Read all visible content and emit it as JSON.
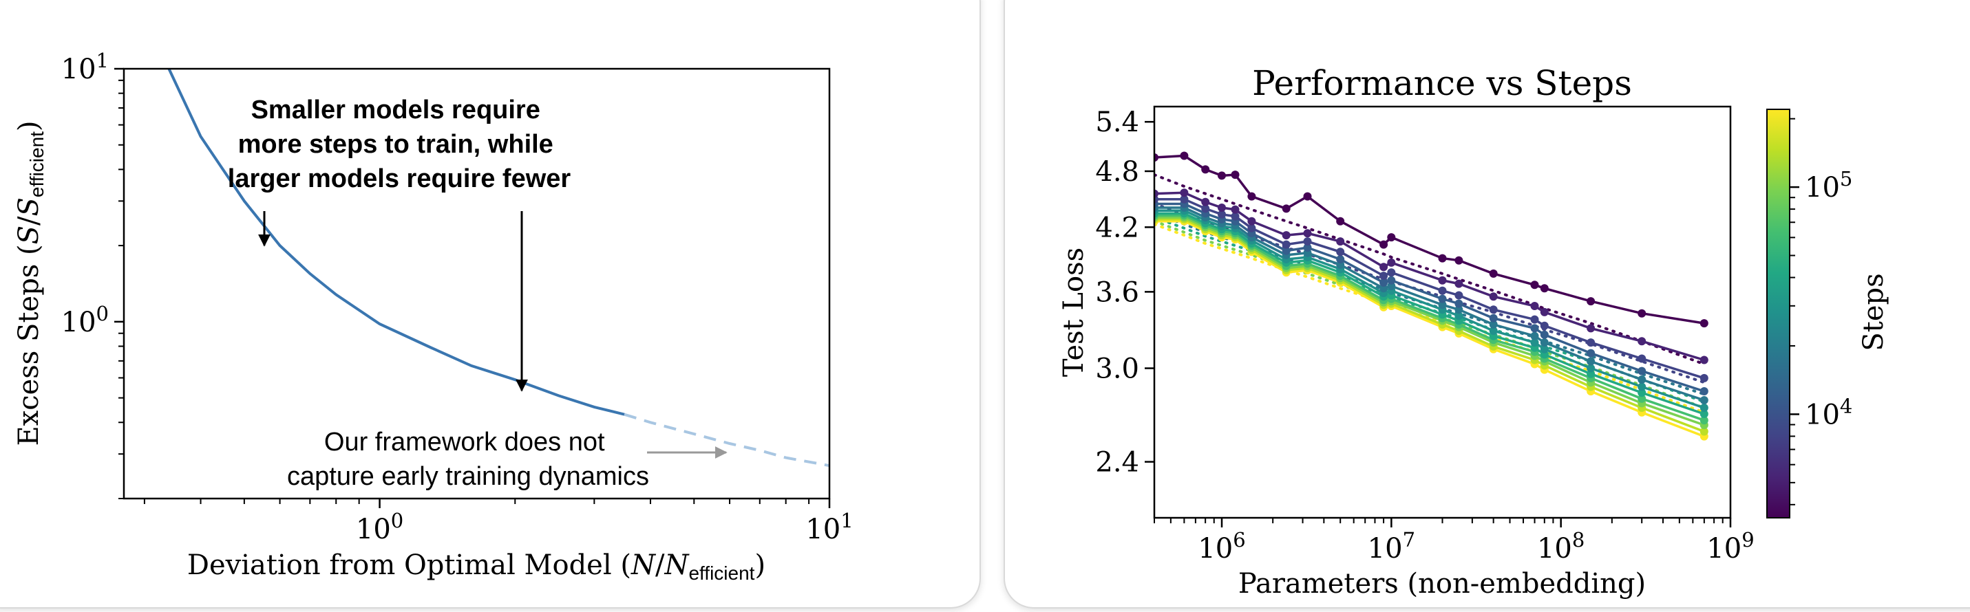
{
  "chart_data": [
    {
      "type": "line",
      "title": "",
      "xlabel": "Deviation from Optimal Model (N/N_efficient)",
      "ylabel": "Excess Steps (S/S_efficient)",
      "xscale": "log",
      "yscale": "log",
      "xlim": [
        0.27,
        10
      ],
      "ylim": [
        0.2,
        10
      ],
      "xticks": [
        {
          "v": 1,
          "base": "10",
          "exp": "0"
        },
        {
          "v": 10,
          "base": "10",
          "exp": "1"
        }
      ],
      "yticks": [
        {
          "v": 1,
          "base": "10",
          "exp": "0"
        },
        {
          "v": 10,
          "base": "10",
          "exp": "1"
        }
      ],
      "grid": false,
      "series": [
        {
          "x": [
            0.34,
            0.4,
            0.5,
            0.6,
            0.7,
            0.8,
            1.0,
            1.3,
            1.6,
            2.0,
            2.5,
            3.0,
            3.5
          ],
          "y": [
            10,
            5.4,
            3.0,
            2.0,
            1.55,
            1.28,
            0.98,
            0.79,
            0.67,
            0.59,
            0.51,
            0.46,
            0.43
          ],
          "style": "solid",
          "color": "#3a76b0"
        },
        {
          "x": [
            3.5,
            4,
            5,
            6,
            7,
            8,
            10
          ],
          "y": [
            0.43,
            0.4,
            0.36,
            0.33,
            0.31,
            0.29,
            0.27
          ],
          "style": "dashed",
          "color": "#a8c6e2"
        }
      ],
      "annotations": [
        {
          "text_lines": [
            "Smaller models require",
            "more steps to train, while",
            "larger models require fewer"
          ],
          "weight": "bold"
        },
        {
          "text_lines": [
            "Our framework does not",
            "capture early training dynamics"
          ],
          "weight": "normal"
        }
      ]
    },
    {
      "type": "line",
      "title": "Performance vs Steps",
      "xlabel": "Parameters (non-embedding)",
      "ylabel": "Test Loss",
      "xscale": "log",
      "yscale": "log",
      "xlim": [
        400000,
        1000000000
      ],
      "ylim": [
        2.1,
        5.6
      ],
      "xticks": [
        {
          "v": 1000000,
          "base": "10",
          "exp": "6"
        },
        {
          "v": 10000000,
          "base": "10",
          "exp": "7"
        },
        {
          "v": 100000000,
          "base": "10",
          "exp": "8"
        },
        {
          "v": 1000000000,
          "base": "10",
          "exp": "9"
        }
      ],
      "yticks": [
        "5.4",
        "4.8",
        "4.2",
        "3.6",
        "3.0",
        "2.4"
      ],
      "grid": false,
      "colorbar": {
        "label": "Steps",
        "scale": "log",
        "range": [
          3500,
          220000
        ],
        "ticks": [
          {
            "v": 10000,
            "base": "10",
            "exp": "4"
          },
          {
            "v": 100000,
            "base": "10",
            "exp": "5"
          }
        ],
        "colormap": "viridis"
      },
      "x_points": [
        400000,
        600000,
        800000,
        1000000,
        1200000,
        1500000,
        2400000,
        3200000,
        5000000,
        9000000,
        10000000,
        20000000,
        25000000,
        40000000,
        70000000,
        80000000,
        150000000,
        300000000,
        700000000
      ],
      "series": [
        {
          "color": "#440154",
          "values": [
            4.96,
            4.98,
            4.82,
            4.75,
            4.76,
            4.52,
            4.39,
            4.52,
            4.26,
            4.03,
            4.1,
            3.9,
            3.88,
            3.76,
            3.66,
            3.63,
            3.52,
            3.42,
            3.34
          ],
          "fit_values": [
            4.76,
            4.63,
            4.55,
            4.49,
            4.44,
            4.38,
            4.26,
            4.19,
            4.08,
            3.94,
            3.91,
            3.76,
            3.71,
            3.61,
            3.49,
            3.46,
            3.34,
            3.2,
            3.03
          ]
        },
        {
          "color": "#482475",
          "values": [
            4.55,
            4.56,
            4.46,
            4.4,
            4.38,
            4.26,
            4.12,
            4.14,
            4.06,
            3.82,
            3.86,
            3.7,
            3.67,
            3.56,
            3.48,
            3.43,
            3.3,
            3.2,
            3.06
          ]
        },
        {
          "color": "#414487",
          "values": [
            4.49,
            4.49,
            4.39,
            4.33,
            4.31,
            4.19,
            4.03,
            4.06,
            3.96,
            3.74,
            3.77,
            3.61,
            3.57,
            3.45,
            3.37,
            3.32,
            3.19,
            3.07,
            2.93
          ],
          "fit_values": [
            4.44,
            4.33,
            4.25,
            4.2,
            4.16,
            4.11,
            4.0,
            3.94,
            3.84,
            3.71,
            3.69,
            3.56,
            3.51,
            3.43,
            3.32,
            3.29,
            3.18,
            3.05,
            2.9
          ]
        },
        {
          "color": "#355f8d",
          "values": [
            4.44,
            4.44,
            4.34,
            4.28,
            4.26,
            4.14,
            3.97,
            4.0,
            3.89,
            3.68,
            3.7,
            3.54,
            3.5,
            3.38,
            3.3,
            3.25,
            3.11,
            2.98,
            2.84
          ]
        },
        {
          "color": "#2a788e",
          "values": [
            4.4,
            4.4,
            4.3,
            4.24,
            4.22,
            4.1,
            3.93,
            3.95,
            3.84,
            3.63,
            3.65,
            3.49,
            3.45,
            3.33,
            3.24,
            3.19,
            3.05,
            2.92,
            2.78
          ],
          "fit_values": [
            4.34,
            4.23,
            4.15,
            4.1,
            4.06,
            4.01,
            3.9,
            3.84,
            3.74,
            3.62,
            3.59,
            3.46,
            3.42,
            3.33,
            3.23,
            3.2,
            3.09,
            2.96,
            2.82
          ]
        },
        {
          "color": "#21918c",
          "values": [
            4.37,
            4.37,
            4.27,
            4.21,
            4.19,
            4.07,
            3.89,
            3.91,
            3.8,
            3.59,
            3.61,
            3.45,
            3.4,
            3.28,
            3.19,
            3.14,
            3.0,
            2.87,
            2.73
          ]
        },
        {
          "color": "#22a884",
          "values": [
            4.34,
            4.34,
            4.24,
            4.18,
            4.16,
            4.04,
            3.86,
            3.88,
            3.77,
            3.56,
            3.57,
            3.41,
            3.36,
            3.24,
            3.15,
            3.1,
            2.96,
            2.83,
            2.69
          ],
          "fit_values": [
            4.3,
            4.19,
            4.11,
            4.06,
            4.02,
            3.97,
            3.86,
            3.8,
            3.7,
            3.58,
            3.55,
            3.42,
            3.38,
            3.29,
            3.19,
            3.16,
            3.05,
            2.92,
            2.77
          ]
        },
        {
          "color": "#44bf70",
          "values": [
            4.32,
            4.32,
            4.22,
            4.16,
            4.14,
            4.02,
            3.83,
            3.85,
            3.74,
            3.53,
            3.54,
            3.38,
            3.33,
            3.21,
            3.12,
            3.07,
            2.93,
            2.79,
            2.65
          ]
        },
        {
          "color": "#7ad151",
          "values": [
            4.3,
            4.3,
            4.2,
            4.14,
            4.12,
            4.0,
            3.81,
            3.83,
            3.72,
            3.51,
            3.52,
            3.36,
            3.31,
            3.19,
            3.09,
            3.05,
            2.9,
            2.76,
            2.62
          ],
          "fit_values": [
            4.26,
            4.15,
            4.07,
            4.02,
            3.98,
            3.93,
            3.82,
            3.76,
            3.66,
            3.54,
            3.51,
            3.38,
            3.34,
            3.25,
            3.15,
            3.12,
            3.01,
            2.88,
            2.73
          ]
        },
        {
          "color": "#bddf26",
          "values": [
            4.28,
            4.28,
            4.18,
            4.12,
            4.1,
            3.98,
            3.79,
            3.81,
            3.7,
            3.49,
            3.5,
            3.33,
            3.28,
            3.16,
            3.06,
            3.02,
            2.87,
            2.73,
            2.58
          ]
        },
        {
          "color": "#fde725",
          "values": [
            4.26,
            4.26,
            4.16,
            4.1,
            4.08,
            3.96,
            3.77,
            3.79,
            3.68,
            3.47,
            3.48,
            3.31,
            3.26,
            3.14,
            3.03,
            2.99,
            2.84,
            2.7,
            2.55
          ],
          "fit_values": [
            4.23,
            4.12,
            4.04,
            3.99,
            3.95,
            3.9,
            3.79,
            3.73,
            3.63,
            3.51,
            3.48,
            3.35,
            3.31,
            3.22,
            3.12,
            3.09,
            2.98,
            2.85,
            2.7
          ]
        }
      ]
    }
  ]
}
